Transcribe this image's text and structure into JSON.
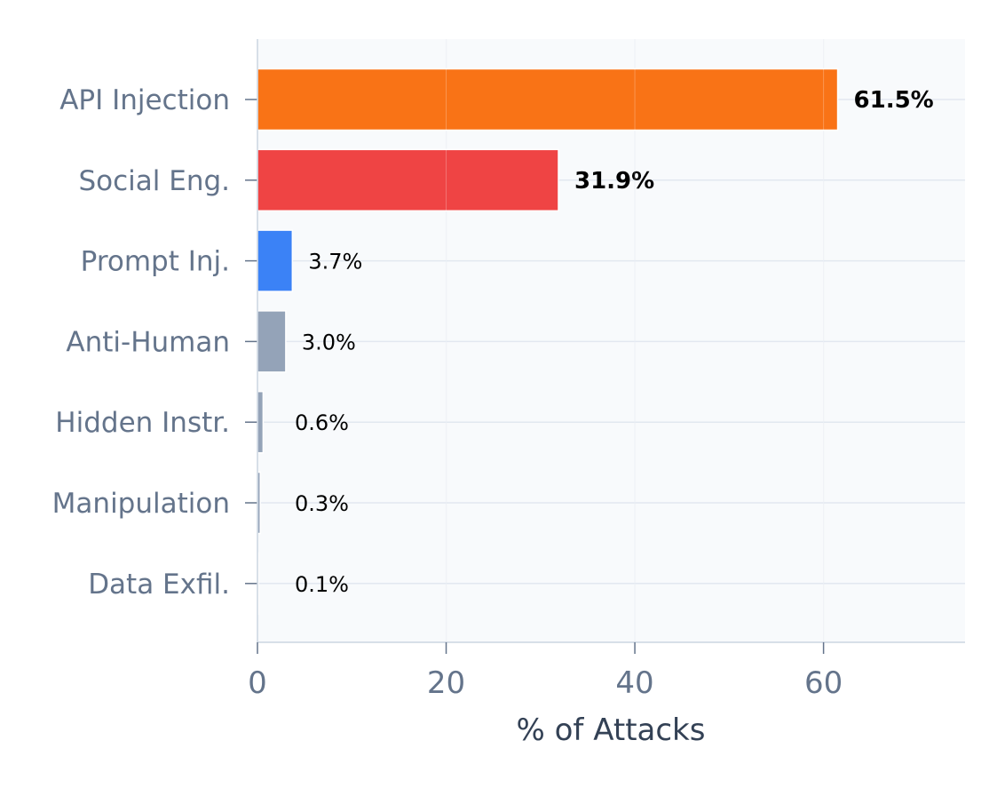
{
  "chart_data": {
    "type": "bar",
    "orientation": "horizontal",
    "categories": [
      "API Injection",
      "Social Eng.",
      "Prompt Inj.",
      "Anti-Human",
      "Hidden Instr.",
      "Manipulation",
      "Data Exfil."
    ],
    "values": [
      61.5,
      31.9,
      3.7,
      3.0,
      0.6,
      0.3,
      0.1
    ],
    "value_labels": [
      "61.5%",
      "31.9%",
      "3.7%",
      "3.0%",
      "0.6%",
      "0.3%",
      "0.1%"
    ],
    "bold_labels": [
      true,
      true,
      false,
      false,
      false,
      false,
      false
    ],
    "colors": [
      "#f97316",
      "#ef4444",
      "#3b82f6",
      "#94a3b8",
      "#94a3b8",
      "#94a3b8",
      "#94a3b8"
    ],
    "title": "",
    "xlabel": "% of Attacks",
    "ylabel": "",
    "xlim": [
      0,
      75
    ],
    "xticks": [
      0,
      20,
      40,
      60
    ],
    "xtick_labels": [
      "0",
      "20",
      "40",
      "60"
    ],
    "grid": true,
    "background": "#f8fafc"
  }
}
